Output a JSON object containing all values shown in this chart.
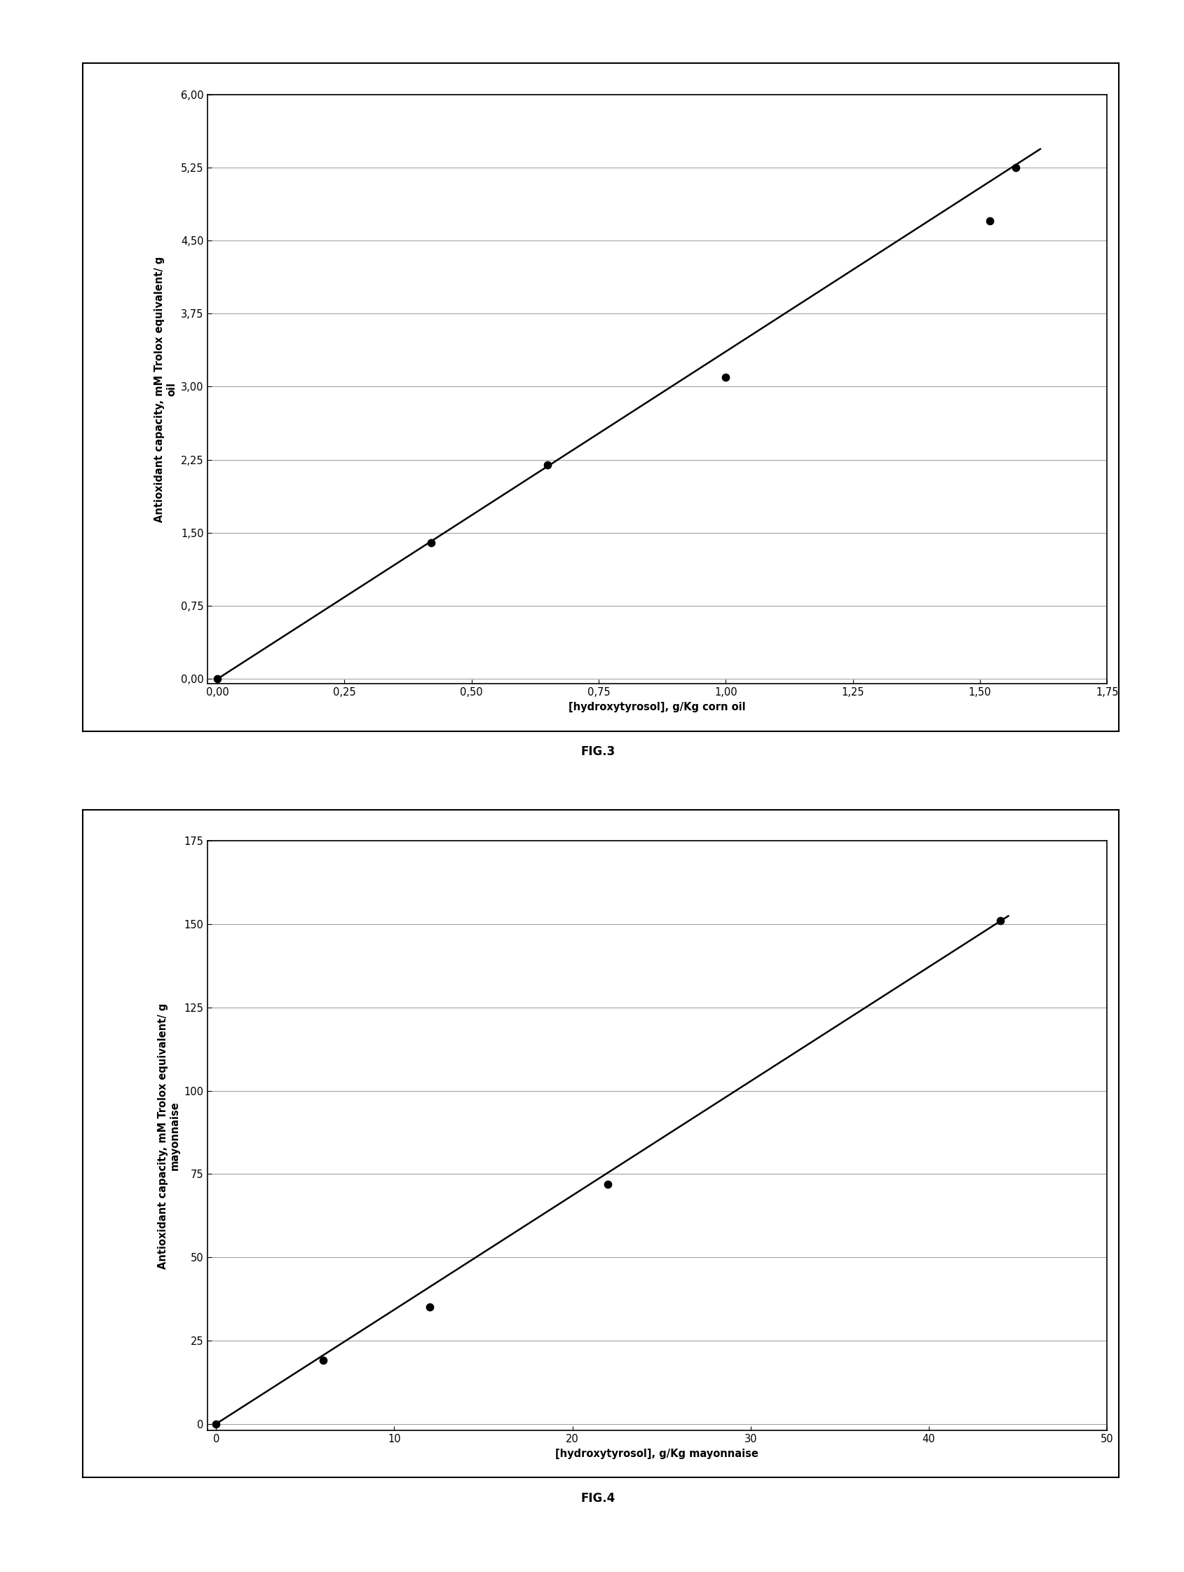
{
  "fig3": {
    "scatter_x": [
      0.0,
      0.42,
      0.65,
      1.0,
      1.52,
      1.57
    ],
    "scatter_y": [
      0.0,
      1.4,
      2.2,
      3.1,
      4.7,
      5.25
    ],
    "line_x": [
      0.0,
      1.62
    ],
    "line_slope": 3.36,
    "line_intercept": 0.0,
    "xlim": [
      -0.02,
      1.75
    ],
    "ylim": [
      -0.05,
      6.0
    ],
    "xticks": [
      0.0,
      0.25,
      0.5,
      0.75,
      1.0,
      1.25,
      1.5,
      1.75
    ],
    "yticks": [
      0.0,
      0.75,
      1.5,
      2.25,
      3.0,
      3.75,
      4.5,
      5.25,
      6.0
    ],
    "xlabel": "[hydroxytyrosol], g/Kg corn oil",
    "ylabel": "Antioxidant capacity, mM Trolox equivalent/ g\noil",
    "fig_label": "FIG.3"
  },
  "fig4": {
    "scatter_x": [
      0.0,
      6.0,
      12.0,
      22.0,
      44.0
    ],
    "scatter_y": [
      0.0,
      19.0,
      35.0,
      72.0,
      151.0
    ],
    "line_x": [
      0.0,
      44.5
    ],
    "line_slope": 3.43,
    "line_intercept": 0.0,
    "xlim": [
      -0.5,
      50.0
    ],
    "ylim": [
      -2.0,
      175.0
    ],
    "xticks": [
      0,
      10,
      20,
      30,
      40,
      50
    ],
    "yticks": [
      0,
      25,
      50,
      75,
      100,
      125,
      150,
      175
    ],
    "xlabel": "[hydroxytyrosol], g/Kg mayonnaise",
    "ylabel": "Antioxidant capacity, mM Trolox equivalent/ g\nmayonnaise",
    "fig_label": "FIG.4"
  },
  "background_color": "#ffffff",
  "plot_bg_color": "#ffffff",
  "line_color": "#000000",
  "scatter_color": "#000000",
  "scatter_size": 55,
  "tick_label_fontsize": 10.5,
  "axis_label_fontsize": 10.5,
  "fig_label_fontsize": 12,
  "outer_box_color": "#000000"
}
